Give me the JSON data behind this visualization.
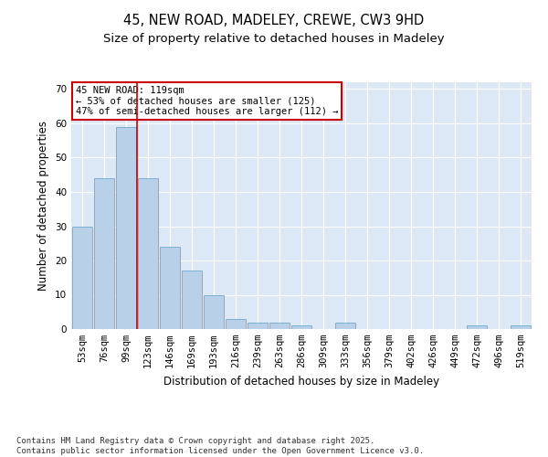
{
  "title1": "45, NEW ROAD, MADELEY, CREWE, CW3 9HD",
  "title2": "Size of property relative to detached houses in Madeley",
  "xlabel": "Distribution of detached houses by size in Madeley",
  "ylabel": "Number of detached properties",
  "categories": [
    "53sqm",
    "76sqm",
    "99sqm",
    "123sqm",
    "146sqm",
    "169sqm",
    "193sqm",
    "216sqm",
    "239sqm",
    "263sqm",
    "286sqm",
    "309sqm",
    "333sqm",
    "356sqm",
    "379sqm",
    "402sqm",
    "426sqm",
    "449sqm",
    "472sqm",
    "496sqm",
    "519sqm"
  ],
  "values": [
    30,
    44,
    59,
    44,
    24,
    17,
    10,
    3,
    2,
    2,
    1,
    0,
    2,
    0,
    0,
    0,
    0,
    0,
    1,
    0,
    1
  ],
  "bar_color": "#b8d0e8",
  "bar_edge_color": "#7aafd4",
  "background_color": "#dce8f5",
  "grid_color": "#ffffff",
  "vline_color": "#cc0000",
  "annotation_text": "45 NEW ROAD: 119sqm\n← 53% of detached houses are smaller (125)\n47% of semi-detached houses are larger (112) →",
  "annotation_box_color": "#cc0000",
  "ylim": [
    0,
    72
  ],
  "yticks": [
    0,
    10,
    20,
    30,
    40,
    50,
    60,
    70
  ],
  "footer_text": "Contains HM Land Registry data © Crown copyright and database right 2025.\nContains public sector information licensed under the Open Government Licence v3.0.",
  "title_fontsize": 10.5,
  "subtitle_fontsize": 9.5,
  "axis_label_fontsize": 8.5,
  "tick_fontsize": 7.5,
  "footer_fontsize": 6.5,
  "annotation_fontsize": 7.5
}
